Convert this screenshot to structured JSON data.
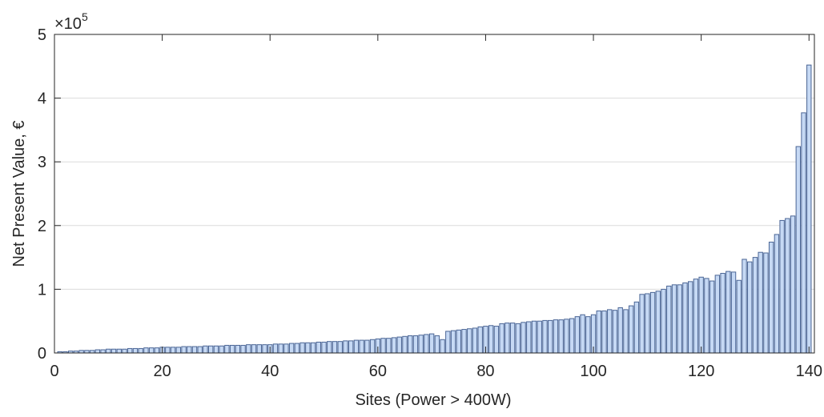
{
  "chart_data": {
    "type": "bar",
    "xlabel": "Sites (Power > 400W)",
    "ylabel": "Net Present Value, €",
    "y_multiplier": {
      "base": "×10",
      "exponent": "5"
    },
    "x": [
      1,
      2,
      3,
      4,
      5,
      6,
      7,
      8,
      9,
      10,
      11,
      12,
      13,
      14,
      15,
      16,
      17,
      18,
      19,
      20,
      21,
      22,
      23,
      24,
      25,
      26,
      27,
      28,
      29,
      30,
      31,
      32,
      33,
      34,
      35,
      36,
      37,
      38,
      39,
      40,
      41,
      42,
      43,
      44,
      45,
      46,
      47,
      48,
      49,
      50,
      51,
      52,
      53,
      54,
      55,
      56,
      57,
      58,
      59,
      60,
      61,
      62,
      63,
      64,
      65,
      66,
      67,
      68,
      69,
      70,
      71,
      72,
      73,
      74,
      75,
      76,
      77,
      78,
      79,
      80,
      81,
      82,
      83,
      84,
      85,
      86,
      87,
      88,
      89,
      90,
      91,
      92,
      93,
      94,
      95,
      96,
      97,
      98,
      99,
      100,
      101,
      102,
      103,
      104,
      105,
      106,
      107,
      108,
      109,
      110,
      111,
      112,
      113,
      114,
      115,
      116,
      117,
      118,
      119,
      120,
      121,
      122,
      123,
      124,
      125,
      126,
      127,
      128,
      129,
      130,
      131,
      132,
      133,
      134,
      135,
      136,
      137,
      138,
      139,
      140
    ],
    "values": [
      0.02,
      0.02,
      0.03,
      0.03,
      0.04,
      0.04,
      0.04,
      0.05,
      0.05,
      0.06,
      0.06,
      0.06,
      0.06,
      0.07,
      0.07,
      0.07,
      0.08,
      0.08,
      0.08,
      0.09,
      0.09,
      0.09,
      0.09,
      0.1,
      0.1,
      0.1,
      0.1,
      0.11,
      0.11,
      0.11,
      0.11,
      0.12,
      0.12,
      0.12,
      0.12,
      0.13,
      0.13,
      0.13,
      0.13,
      0.13,
      0.14,
      0.14,
      0.14,
      0.15,
      0.15,
      0.16,
      0.16,
      0.16,
      0.17,
      0.17,
      0.18,
      0.18,
      0.18,
      0.19,
      0.19,
      0.2,
      0.2,
      0.2,
      0.21,
      0.22,
      0.23,
      0.23,
      0.24,
      0.25,
      0.26,
      0.27,
      0.27,
      0.28,
      0.29,
      0.3,
      0.27,
      0.21,
      0.34,
      0.35,
      0.36,
      0.37,
      0.38,
      0.39,
      0.41,
      0.42,
      0.43,
      0.42,
      0.46,
      0.47,
      0.47,
      0.46,
      0.48,
      0.49,
      0.5,
      0.5,
      0.51,
      0.51,
      0.52,
      0.52,
      0.53,
      0.54,
      0.57,
      0.6,
      0.57,
      0.6,
      0.66,
      0.66,
      0.68,
      0.67,
      0.71,
      0.68,
      0.74,
      0.8,
      0.92,
      0.93,
      0.95,
      0.97,
      1.0,
      1.05,
      1.07,
      1.07,
      1.1,
      1.12,
      1.16,
      1.19,
      1.17,
      1.13,
      1.22,
      1.25,
      1.28,
      1.27,
      1.14,
      1.47,
      1.43,
      1.5,
      1.58,
      1.57,
      1.74,
      1.86,
      2.08,
      2.11,
      2.15,
      3.24,
      3.77,
      4.52
    ],
    "color": "#c6d9f4",
    "edgecolor": "#4a6595",
    "xlim": [
      0,
      141
    ],
    "ylim": [
      0,
      5
    ],
    "xticks": [
      0,
      20,
      40,
      60,
      80,
      100,
      120,
      140
    ],
    "yticks": [
      0,
      1,
      2,
      3,
      4,
      5
    ],
    "grid": true
  }
}
